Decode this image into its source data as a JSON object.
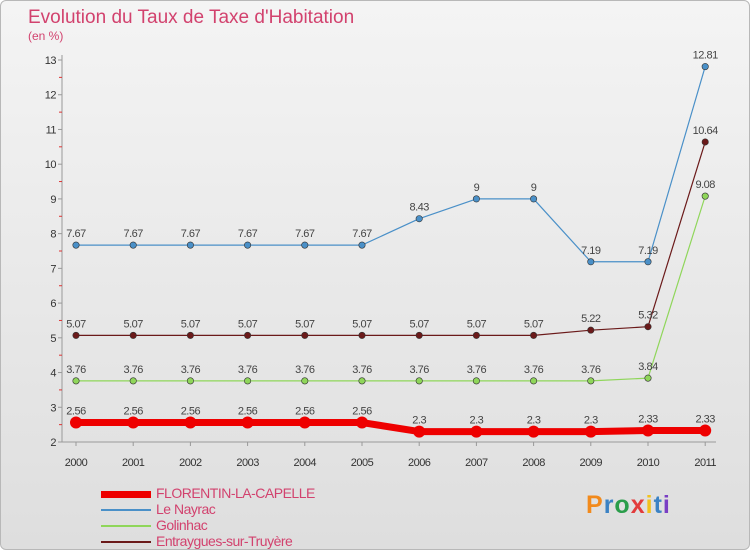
{
  "chart_data": {
    "type": "line",
    "title": "Evolution du Taux de Taxe d'Habitation",
    "ylabel": "(en %)",
    "categories": [
      "2000",
      "2001",
      "2002",
      "2003",
      "2004",
      "2005",
      "2006",
      "2007",
      "2008",
      "2009",
      "2010",
      "2011"
    ],
    "yticks": [
      "2",
      "3",
      "4",
      "5",
      "6",
      "7",
      "8",
      "9",
      "10",
      "11",
      "12",
      "13"
    ],
    "ylim": [
      2,
      13
    ],
    "grid": false,
    "legend_position": "bottom-left",
    "series": [
      {
        "name": "Le Nayrac",
        "color": "#4a90c8",
        "values": [
          7.67,
          7.67,
          7.67,
          7.67,
          7.67,
          7.67,
          8.43,
          9,
          9,
          7.19,
          7.19,
          12.81
        ],
        "labels": [
          "7.67",
          "7.67",
          "7.67",
          "7.67",
          "7.67",
          "7.67",
          "8.43",
          "9",
          "9",
          "7.19",
          "7.19",
          "12.81"
        ]
      },
      {
        "name": "Entraygues-sur-Truyère",
        "color": "#6b1a1a",
        "values": [
          5.07,
          5.07,
          5.07,
          5.07,
          5.07,
          5.07,
          5.07,
          5.07,
          5.07,
          5.22,
          5.32,
          10.64
        ],
        "labels": [
          "5.07",
          "5.07",
          "5.07",
          "5.07",
          "5.07",
          "5.07",
          "5.07",
          "5.07",
          "5.07",
          "5.22",
          "5.32",
          "10.64"
        ]
      },
      {
        "name": "Golinhac",
        "color": "#8fd65a",
        "values": [
          3.76,
          3.76,
          3.76,
          3.76,
          3.76,
          3.76,
          3.76,
          3.76,
          3.76,
          3.76,
          3.84,
          9.08
        ],
        "labels": [
          "3.76",
          "3.76",
          "3.76",
          "3.76",
          "3.76",
          "3.76",
          "3.76",
          "3.76",
          "3.76",
          "3.76",
          "3.84",
          "9.08"
        ]
      },
      {
        "name": "FLORENTIN-LA-CAPELLE",
        "color": "#ee0000",
        "values": [
          2.56,
          2.56,
          2.56,
          2.56,
          2.56,
          2.56,
          2.3,
          2.3,
          2.3,
          2.3,
          2.33,
          2.33
        ],
        "labels": [
          "2.56",
          "2.56",
          "2.56",
          "2.56",
          "2.56",
          "2.56",
          "2.3",
          "2.3",
          "2.3",
          "2.3",
          "2.33",
          "2.33"
        ]
      }
    ],
    "legend": [
      {
        "name": "FLORENTIN-LA-CAPELLE",
        "color": "#ee0000",
        "width": 7
      },
      {
        "name": "Le Nayrac",
        "color": "#4a90c8",
        "width": 2
      },
      {
        "name": "Golinhac",
        "color": "#8fd65a",
        "width": 2
      },
      {
        "name": "Entraygues-sur-Truyère",
        "color": "#6b1a1a",
        "width": 2
      }
    ]
  },
  "logo": {
    "text": "Proxiti",
    "colors": [
      "#f28a1c",
      "#3b82c4",
      "#2a9d4a",
      "#e23b3b",
      "#f2c21c",
      "#3b82c4",
      "#7a3fc4"
    ]
  }
}
